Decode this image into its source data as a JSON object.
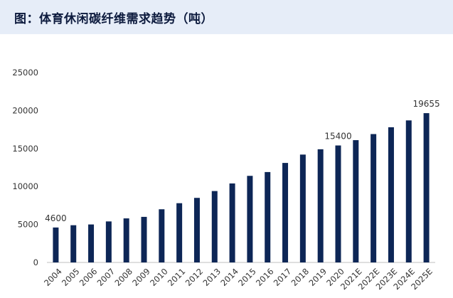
{
  "header": {
    "title": "图：体育休闲碳纤维需求趋势（吨）"
  },
  "colors": {
    "bar": "#0d2656",
    "title_bg": "#e6edf8",
    "axis": "#bfbfbf"
  },
  "chart_data": {
    "type": "bar",
    "title": "图：体育休闲碳纤维需求趋势（吨）",
    "categories": [
      "2004",
      "2005",
      "2006",
      "2007",
      "2008",
      "2009",
      "2010",
      "2011",
      "2012",
      "2013",
      "2014",
      "2015",
      "2016",
      "2017",
      "2018",
      "2019",
      "2020",
      "2021E",
      "2022E",
      "2023E",
      "2024E",
      "2025E"
    ],
    "values": [
      4600,
      4900,
      5000,
      5400,
      5800,
      6000,
      7000,
      7800,
      8500,
      9400,
      10400,
      11400,
      11900,
      13100,
      14200,
      14900,
      15400,
      16100,
      16900,
      17800,
      18700,
      19655
    ],
    "data_labels": [
      {
        "index": 0,
        "text": "4600"
      },
      {
        "index": 16,
        "text": "15400"
      },
      {
        "index": 21,
        "text": "19655"
      }
    ],
    "yticks": [
      "0",
      "5000",
      "10000",
      "15000",
      "20000",
      "25000"
    ],
    "ylim": [
      0,
      25000
    ],
    "xlabel": "",
    "ylabel": "",
    "grid": false,
    "legend": "none"
  }
}
